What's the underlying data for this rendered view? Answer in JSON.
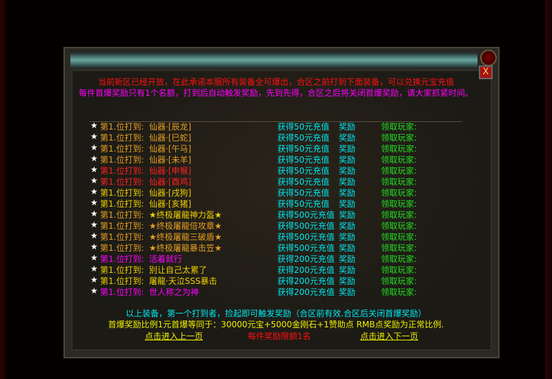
{
  "header": {
    "line1": "当前新区已经开放，在此承诺本服所有装备全可爆出，合区之前打到下面装备，可以兑换元宝充值",
    "line2": "每件首爆奖励只有1个名额，打到后自动触发奖励，先到先得，合区之后将关闭首爆奖励，请大家抓紧时间。"
  },
  "close_label": "X",
  "colors": {
    "orange": "#e8a020",
    "red": "#ff2020",
    "yellow": "#f0d000",
    "magenta": "#ff00ff",
    "cyan": "#00e8f0",
    "green": "#20e020"
  },
  "rows": [
    {
      "star": "★",
      "label": "第1.位打到:",
      "item": "仙器·[辰龙]",
      "reward": "获得50元充值",
      "bonus": "奖励",
      "claim": "领取玩家:",
      "lc": "#e8a020",
      "ic": "#e8a020"
    },
    {
      "star": "★",
      "label": "第1.位打到:",
      "item": "仙器·[巳蛇]",
      "reward": "获得50元充值",
      "bonus": "奖励",
      "claim": "领取玩家:",
      "lc": "#e8a020",
      "ic": "#e8a020"
    },
    {
      "star": "★",
      "label": "第1.位打到:",
      "item": "仙器·[午马]",
      "reward": "获得50元充值",
      "bonus": "奖励",
      "claim": "领取玩家:",
      "lc": "#e8a020",
      "ic": "#e8a020"
    },
    {
      "star": "★",
      "label": "第1.位打到:",
      "item": "仙器·[未羊]",
      "reward": "获得50元充值",
      "bonus": "奖励",
      "claim": "领取玩家:",
      "lc": "#e8a020",
      "ic": "#e8a020"
    },
    {
      "star": "★",
      "label": "第1.位打到:",
      "item": "仙器·[申猴]",
      "reward": "获得50元充值",
      "bonus": "奖励",
      "claim": "领取玩家:",
      "lc": "#ff2020",
      "ic": "#ff2020"
    },
    {
      "star": "★",
      "label": "第1.位打到:",
      "item": "仙器·[酉鸡]",
      "reward": "获得50元充值",
      "bonus": "奖励",
      "claim": "领取玩家:",
      "lc": "#ff2020",
      "ic": "#ff2020"
    },
    {
      "star": "★",
      "label": "第1.位打到:",
      "item": "仙器·[戌狗]",
      "reward": "获得50元充值",
      "bonus": "奖励",
      "claim": "领取玩家:",
      "lc": "#f0d000",
      "ic": "#f0d000"
    },
    {
      "star": "★",
      "label": "第1.位打到:",
      "item": "仙器·[亥猪]",
      "reward": "获得50元充值",
      "bonus": "奖励",
      "claim": "领取玩家:",
      "lc": "#f0d000",
      "ic": "#f0d000"
    },
    {
      "star": "★",
      "label": "第1.位打到:",
      "item": "★终极屠龍神力盔★",
      "reward": "获得500元充值",
      "bonus": "奖励",
      "claim": "领取玩家:",
      "lc": "#e8a020",
      "ic": "#f0d000"
    },
    {
      "star": "★",
      "label": "第1.位打到:",
      "item": "★终极屠龍倍攻章★",
      "reward": "获得500元充值",
      "bonus": "奖励",
      "claim": "领取玩家:",
      "lc": "#e8a020",
      "ic": "#e8a020"
    },
    {
      "star": "★",
      "label": "第1.位打到:",
      "item": "★终极屠龍三破盾★",
      "reward": "获得500元充值",
      "bonus": "奖励",
      "claim": "领取玩家:",
      "lc": "#e8a020",
      "ic": "#e8a020"
    },
    {
      "star": "★",
      "label": "第1.位打到:",
      "item": "★终极屠龍暴击笠★",
      "reward": "获得500元充值",
      "bonus": "奖励",
      "claim": "领取玩家:",
      "lc": "#e8a020",
      "ic": "#e8a020"
    },
    {
      "star": "★",
      "label": "第1.位打到:",
      "item": "活着就行",
      "reward": "获得200元充值",
      "bonus": "奖励",
      "claim": "领取玩家:",
      "lc": "#ff00ff",
      "ic": "#ff00ff"
    },
    {
      "star": "★",
      "label": "第1.位打到:",
      "item": "别让自己太累了",
      "reward": "获得200元充值",
      "bonus": "奖励",
      "claim": "领取玩家:",
      "lc": "#f0d000",
      "ic": "#f0d000"
    },
    {
      "star": "★",
      "label": "第1.位打到:",
      "item": "屠龍·天泣SSS暴击",
      "reward": "获得200元充值",
      "bonus": "奖励",
      "claim": "领取玩家:",
      "lc": "#f0d000",
      "ic": "#f0d000"
    },
    {
      "star": "★",
      "label": "第1.位打到:",
      "item": "世人称之为神",
      "reward": "获得200元充值",
      "bonus": "奖励",
      "claim": "领取玩家:",
      "lc": "#ff00ff",
      "ic": "#ff00ff"
    }
  ],
  "footer": {
    "note": "以上装备，第一个打到者，捡起即可触发奖励（合区前有效.合区后关闭首爆奖励）",
    "ratio": "首爆奖励比例1元首爆等同于：30000元宝+5000金刚石+1赞助点 RMB点奖励为正常比例.",
    "prev": "点击进入上一页",
    "limit": "每件奖励限额1名",
    "next": "点击进入下一页"
  }
}
